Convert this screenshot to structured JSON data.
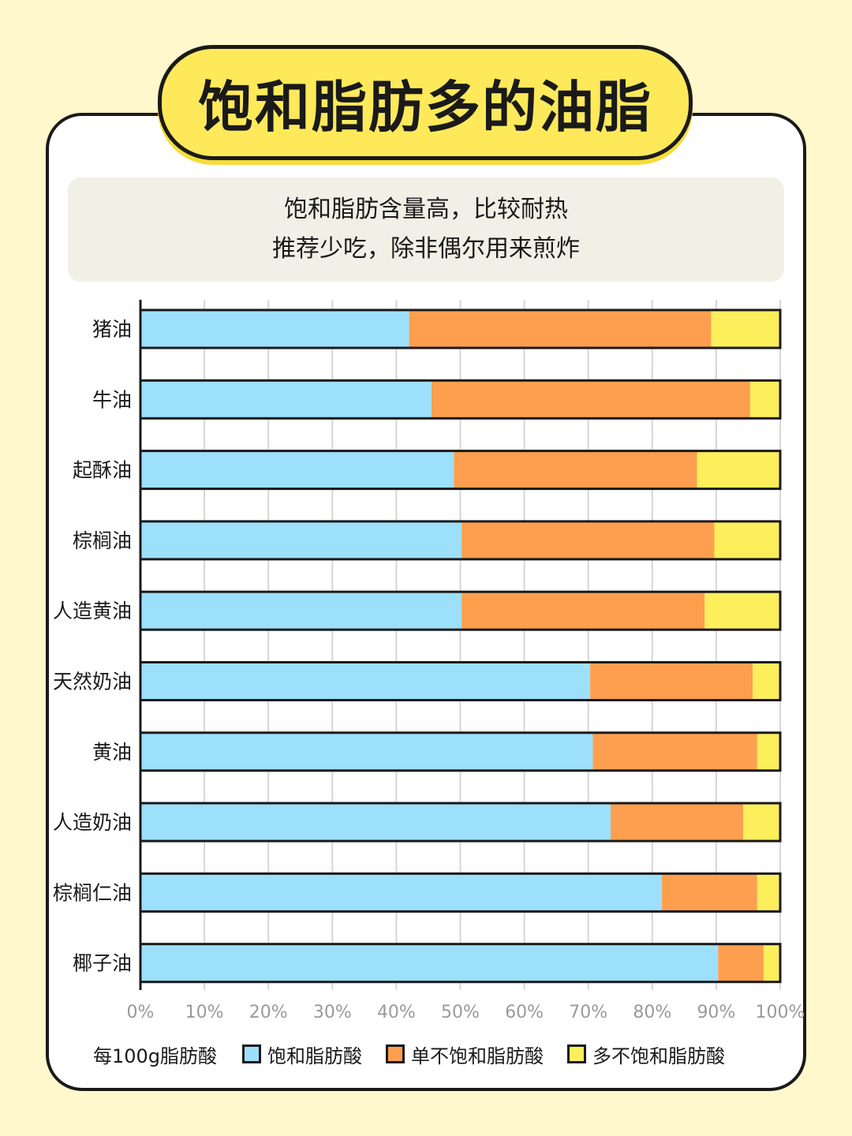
{
  "title": "饱和脂肪多的油脂",
  "subtitle": {
    "line1": "饱和脂肪含量高，比较耐热",
    "line2": "推荐少吃，除非偶尔用来煎炸"
  },
  "legend": {
    "prefix": "每100g脂肪酸"
  },
  "colors": {
    "background": "#fff8cc",
    "title_fill": "#fde95a",
    "saturated": "#9de0fc",
    "monounsaturated": "#fd9f4f",
    "polyunsaturated": "#fdee5b",
    "outline": "#1a1a1a",
    "grid": "#d6d6d6",
    "tick_text": "#9a9a9a"
  },
  "chart_data": {
    "type": "bar",
    "orientation": "horizontal",
    "stacked": true,
    "categories": [
      "猪油",
      "牛油",
      "起酥油",
      "棕榈油",
      "人造黄油",
      "天然奶油",
      "黄油",
      "人造奶油",
      "棕榈仁油",
      "椰子油"
    ],
    "series": [
      {
        "name": "饱和脂肪酸",
        "color": "#9de0fc",
        "values": [
          42,
          45.5,
          49,
          50.2,
          50.2,
          70.3,
          70.7,
          73.5,
          81.5,
          90.3
        ]
      },
      {
        "name": "单不饱和脂肪酸",
        "color": "#fd9f4f",
        "values": [
          47.2,
          49.8,
          38,
          39.5,
          38,
          25.4,
          25.7,
          20.7,
          14.9,
          7.1
        ]
      },
      {
        "name": "多不饱和脂肪酸",
        "color": "#fdee5b",
        "values": [
          10.8,
          4.7,
          13,
          10.3,
          11.8,
          4.3,
          3.6,
          5.8,
          3.6,
          2.6
        ]
      }
    ],
    "xlim": [
      0,
      100
    ],
    "x_ticks": [
      "0%",
      "10%",
      "20%",
      "30%",
      "40%",
      "50%",
      "60%",
      "70%",
      "80%",
      "90%",
      "100%"
    ],
    "grid": true,
    "legend_position": "bottom"
  }
}
